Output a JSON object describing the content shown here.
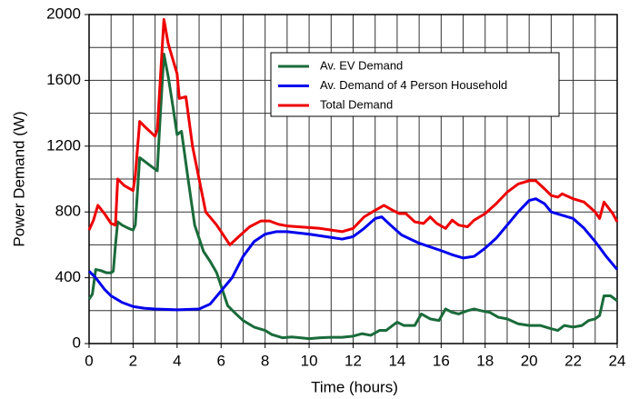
{
  "chart_data": {
    "type": "line",
    "xlabel": "Time (hours)",
    "ylabel": "Power Demand (W)",
    "xlim": [
      0,
      24
    ],
    "ylim": [
      0,
      2000
    ],
    "xticks": [
      0,
      2,
      4,
      6,
      8,
      10,
      12,
      14,
      16,
      18,
      20,
      22,
      24
    ],
    "yticks": [
      0,
      400,
      800,
      1200,
      1600,
      2000
    ],
    "xgrid": [
      1,
      2,
      3,
      4,
      5,
      6,
      7,
      8,
      9,
      10,
      11,
      12,
      13,
      14,
      15,
      16,
      17,
      18,
      19,
      20,
      21,
      22,
      23
    ],
    "ygrid": [
      200,
      400,
      600,
      800,
      1000,
      1200,
      1400,
      1600,
      1800
    ],
    "grid": true,
    "legend": "upper right",
    "series": [
      {
        "name": "Av. EV Demand",
        "color": "#1a6b3a",
        "x": [
          0,
          0.15,
          0.3,
          0.5,
          0.8,
          1.0,
          1.1,
          1.2,
          1.3,
          1.5,
          1.8,
          2.0,
          2.1,
          2.3,
          2.5,
          2.8,
          3.1,
          3.2,
          3.4,
          3.6,
          3.8,
          4.0,
          4.2,
          4.5,
          4.8,
          5.0,
          5.2,
          5.5,
          5.8,
          6.0,
          6.3,
          6.6,
          7.0,
          7.5,
          8.0,
          8.3,
          8.8,
          9.2,
          9.6,
          10,
          10.5,
          11,
          11.5,
          12,
          12.4,
          12.8,
          13.2,
          13.5,
          13.8,
          14,
          14.3,
          14.8,
          15.1,
          15.5,
          15.9,
          16.2,
          16.5,
          16.8,
          17.2,
          17.5,
          17.8,
          18.2,
          18.6,
          19,
          19.5,
          20,
          20.5,
          21,
          21.3,
          21.6,
          22,
          22.4,
          22.7,
          23,
          23.2,
          23.4,
          23.7,
          24
        ],
        "values": [
          270,
          300,
          450,
          445,
          430,
          430,
          440,
          600,
          740,
          720,
          700,
          690,
          720,
          1130,
          1110,
          1080,
          1050,
          1300,
          1760,
          1620,
          1450,
          1270,
          1290,
          1000,
          720,
          640,
          560,
          500,
          430,
          350,
          230,
          190,
          140,
          100,
          80,
          55,
          35,
          40,
          35,
          30,
          35,
          38,
          38,
          45,
          60,
          50,
          80,
          80,
          110,
          130,
          110,
          110,
          180,
          150,
          140,
          210,
          190,
          180,
          200,
          210,
          200,
          190,
          160,
          150,
          120,
          110,
          110,
          90,
          80,
          110,
          100,
          110,
          140,
          150,
          170,
          290,
          290,
          260
        ]
      },
      {
        "name": "Av. Demand of 4 Person Household",
        "color": "#0000ee",
        "x": [
          0,
          0.3,
          0.7,
          1,
          1.5,
          2,
          2.5,
          3,
          4,
          5,
          5.5,
          6,
          6.5,
          7,
          7.5,
          8,
          8.5,
          9,
          10,
          11,
          11.5,
          12,
          12.5,
          13,
          13.3,
          13.7,
          14.2,
          15,
          16,
          16.5,
          17,
          17.5,
          18,
          18.5,
          19,
          19.5,
          20,
          20.3,
          20.7,
          21,
          21.5,
          22,
          22.5,
          23,
          23.5,
          24
        ],
        "values": [
          440,
          400,
          330,
          290,
          250,
          225,
          215,
          210,
          205,
          210,
          240,
          320,
          400,
          530,
          620,
          665,
          680,
          680,
          665,
          645,
          635,
          650,
          700,
          760,
          770,
          720,
          660,
          610,
          565,
          540,
          520,
          530,
          580,
          640,
          720,
          800,
          870,
          880,
          850,
          800,
          780,
          760,
          700,
          620,
          530,
          450
        ]
      },
      {
        "name": "Total Demand",
        "color": "#ee0000",
        "x": [
          0,
          0.2,
          0.4,
          0.7,
          1,
          1.2,
          1.3,
          1.6,
          2,
          2.1,
          2.3,
          2.6,
          3,
          3.1,
          3.4,
          3.6,
          4,
          4.1,
          4.4,
          4.7,
          5,
          5.3,
          5.8,
          6.2,
          6.4,
          6.8,
          7.3,
          7.8,
          8.2,
          8.6,
          9,
          10,
          10.5,
          11,
          11.5,
          12,
          12.5,
          13,
          13.4,
          13.8,
          14.1,
          14.4,
          14.8,
          15.2,
          15.5,
          15.8,
          16.2,
          16.5,
          16.8,
          17.2,
          17.5,
          18,
          18.5,
          19,
          19.5,
          20,
          20.3,
          20.7,
          21,
          21.3,
          21.5,
          22,
          22.5,
          23,
          23.2,
          23.4,
          23.8,
          24
        ],
        "values": [
          690,
          750,
          840,
          790,
          730,
          720,
          1000,
          960,
          930,
          1020,
          1350,
          1310,
          1260,
          1300,
          1970,
          1820,
          1640,
          1490,
          1500,
          1200,
          1000,
          800,
          720,
          640,
          600,
          650,
          710,
          745,
          745,
          725,
          715,
          705,
          700,
          690,
          680,
          700,
          770,
          810,
          840,
          810,
          790,
          790,
          740,
          730,
          770,
          730,
          700,
          750,
          720,
          710,
          750,
          790,
          850,
          920,
          970,
          990,
          990,
          940,
          900,
          890,
          910,
          880,
          860,
          800,
          760,
          860,
          790,
          740
        ]
      }
    ]
  }
}
